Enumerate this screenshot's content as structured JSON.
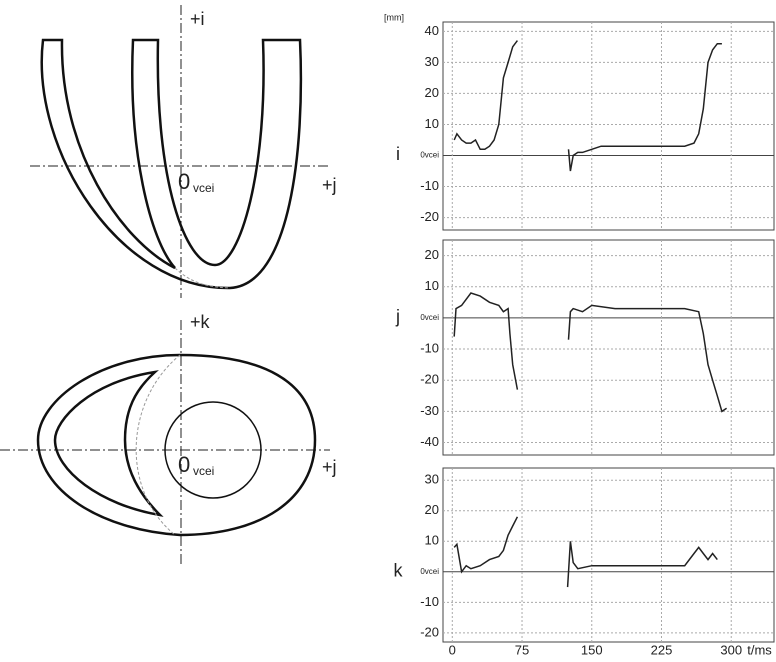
{
  "diagrams": {
    "top": {
      "axis_up": "+i",
      "axis_right": "+j",
      "origin": {
        "main": "0",
        "sub": "vcei"
      }
    },
    "bottom": {
      "axis_up": "+k",
      "axis_right": "+j",
      "origin": {
        "main": "0",
        "sub": "vcei"
      }
    }
  },
  "chart_data": [
    {
      "type": "line",
      "ylabel": "i",
      "unit": "[mm]",
      "color": "#222222",
      "grid": true,
      "show_xtick_labels": false,
      "xlim": [
        -10,
        346
      ],
      "ylim": [
        -24,
        43
      ],
      "xticks": [
        0,
        75,
        150,
        225,
        300
      ],
      "yticks": [
        -20,
        -10,
        {
          "value": 0,
          "label": "0vcei"
        },
        10,
        20,
        30,
        40
      ],
      "x": [
        2,
        5,
        10,
        15,
        20,
        25,
        30,
        35,
        40,
        45,
        50,
        55,
        60,
        65,
        70,
        100,
        125,
        127,
        130,
        135,
        140,
        150,
        160,
        175,
        200,
        225,
        250,
        260,
        265,
        270,
        275,
        280,
        285,
        290
      ],
      "values": [
        5,
        7,
        5,
        4,
        4,
        5,
        2,
        2,
        3,
        5,
        10,
        25,
        30,
        35,
        37,
        null,
        2,
        -5,
        0,
        1,
        1,
        2,
        3,
        3,
        3,
        3,
        3,
        4,
        7,
        15,
        30,
        34,
        36,
        36
      ]
    },
    {
      "type": "line",
      "ylabel": "j",
      "color": "#222222",
      "grid": true,
      "show_xtick_labels": false,
      "xlim": [
        -10,
        346
      ],
      "ylim": [
        -44,
        25
      ],
      "xticks": [
        0,
        75,
        150,
        225,
        300
      ],
      "yticks": [
        -40,
        -30,
        -20,
        -10,
        {
          "value": 0,
          "label": "0vcei"
        },
        10,
        20
      ],
      "x": [
        2,
        4,
        10,
        20,
        30,
        40,
        50,
        55,
        60,
        62,
        65,
        70,
        100,
        125,
        127,
        130,
        140,
        150,
        175,
        200,
        225,
        250,
        265,
        270,
        275,
        280,
        285,
        290,
        295
      ],
      "values": [
        -6,
        3,
        4,
        8,
        7,
        5,
        4,
        2,
        3,
        -5,
        -15,
        -23,
        null,
        -7,
        2,
        3,
        2,
        4,
        3,
        3,
        3,
        3,
        2,
        -5,
        -15,
        -20,
        -25,
        -30,
        -29
      ]
    },
    {
      "type": "line",
      "ylabel": "k",
      "xlabel": "t/ms",
      "color": "#222222",
      "grid": true,
      "show_xtick_labels": true,
      "xlim": [
        -10,
        346
      ],
      "ylim": [
        -23,
        34
      ],
      "xticks": [
        0,
        75,
        150,
        225,
        300
      ],
      "yticks": [
        -20,
        -10,
        {
          "value": 0,
          "label": "0vcei"
        },
        10,
        20,
        30
      ],
      "x": [
        2,
        5,
        10,
        15,
        20,
        30,
        40,
        50,
        55,
        60,
        65,
        70,
        100,
        124,
        127,
        130,
        135,
        150,
        175,
        200,
        225,
        250,
        260,
        265,
        270,
        275,
        280,
        285
      ],
      "values": [
        8,
        9,
        0,
        2,
        1,
        2,
        4,
        5,
        7,
        12,
        15,
        18,
        null,
        -5,
        10,
        3,
        1,
        2,
        2,
        2,
        2,
        2,
        6,
        8,
        6,
        4,
        6,
        4
      ]
    }
  ]
}
